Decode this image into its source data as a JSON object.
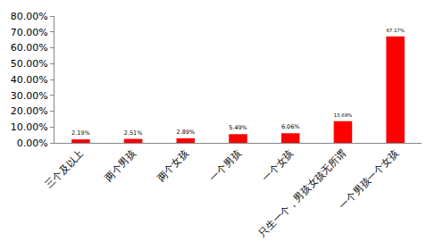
{
  "chart_data": {
    "type": "bar",
    "categories": [
      "三个及以上",
      "两个男孩",
      "两个女孩",
      "一个男孩",
      "一个女孩",
      "只生一个，男孩女孩无所谓",
      "一个男孩一个女孩"
    ],
    "values": [
      2.19,
      2.51,
      2.89,
      5.49,
      6.06,
      13.69,
      67.17
    ],
    "value_labels": [
      "2.19%",
      "2.51%",
      "2.89%",
      "5.49%",
      "6.06%",
      "13.69%",
      "67.17%"
    ],
    "data_labels": true,
    "color": "#ff0000",
    "ylim": [
      0,
      80
    ],
    "yticks": [
      {
        "value": 0,
        "label": "0.00%"
      },
      {
        "value": 10,
        "label": "10.00%"
      },
      {
        "value": 20,
        "label": "20.00%"
      },
      {
        "value": 30,
        "label": "30.00%"
      },
      {
        "value": 40,
        "label": "40.00%"
      },
      {
        "value": 50,
        "label": "50.00%"
      },
      {
        "value": 60,
        "label": "60.00%"
      },
      {
        "value": 70,
        "label": "70.00%"
      },
      {
        "value": 80,
        "label": "80.00%"
      }
    ],
    "grid": false
  }
}
